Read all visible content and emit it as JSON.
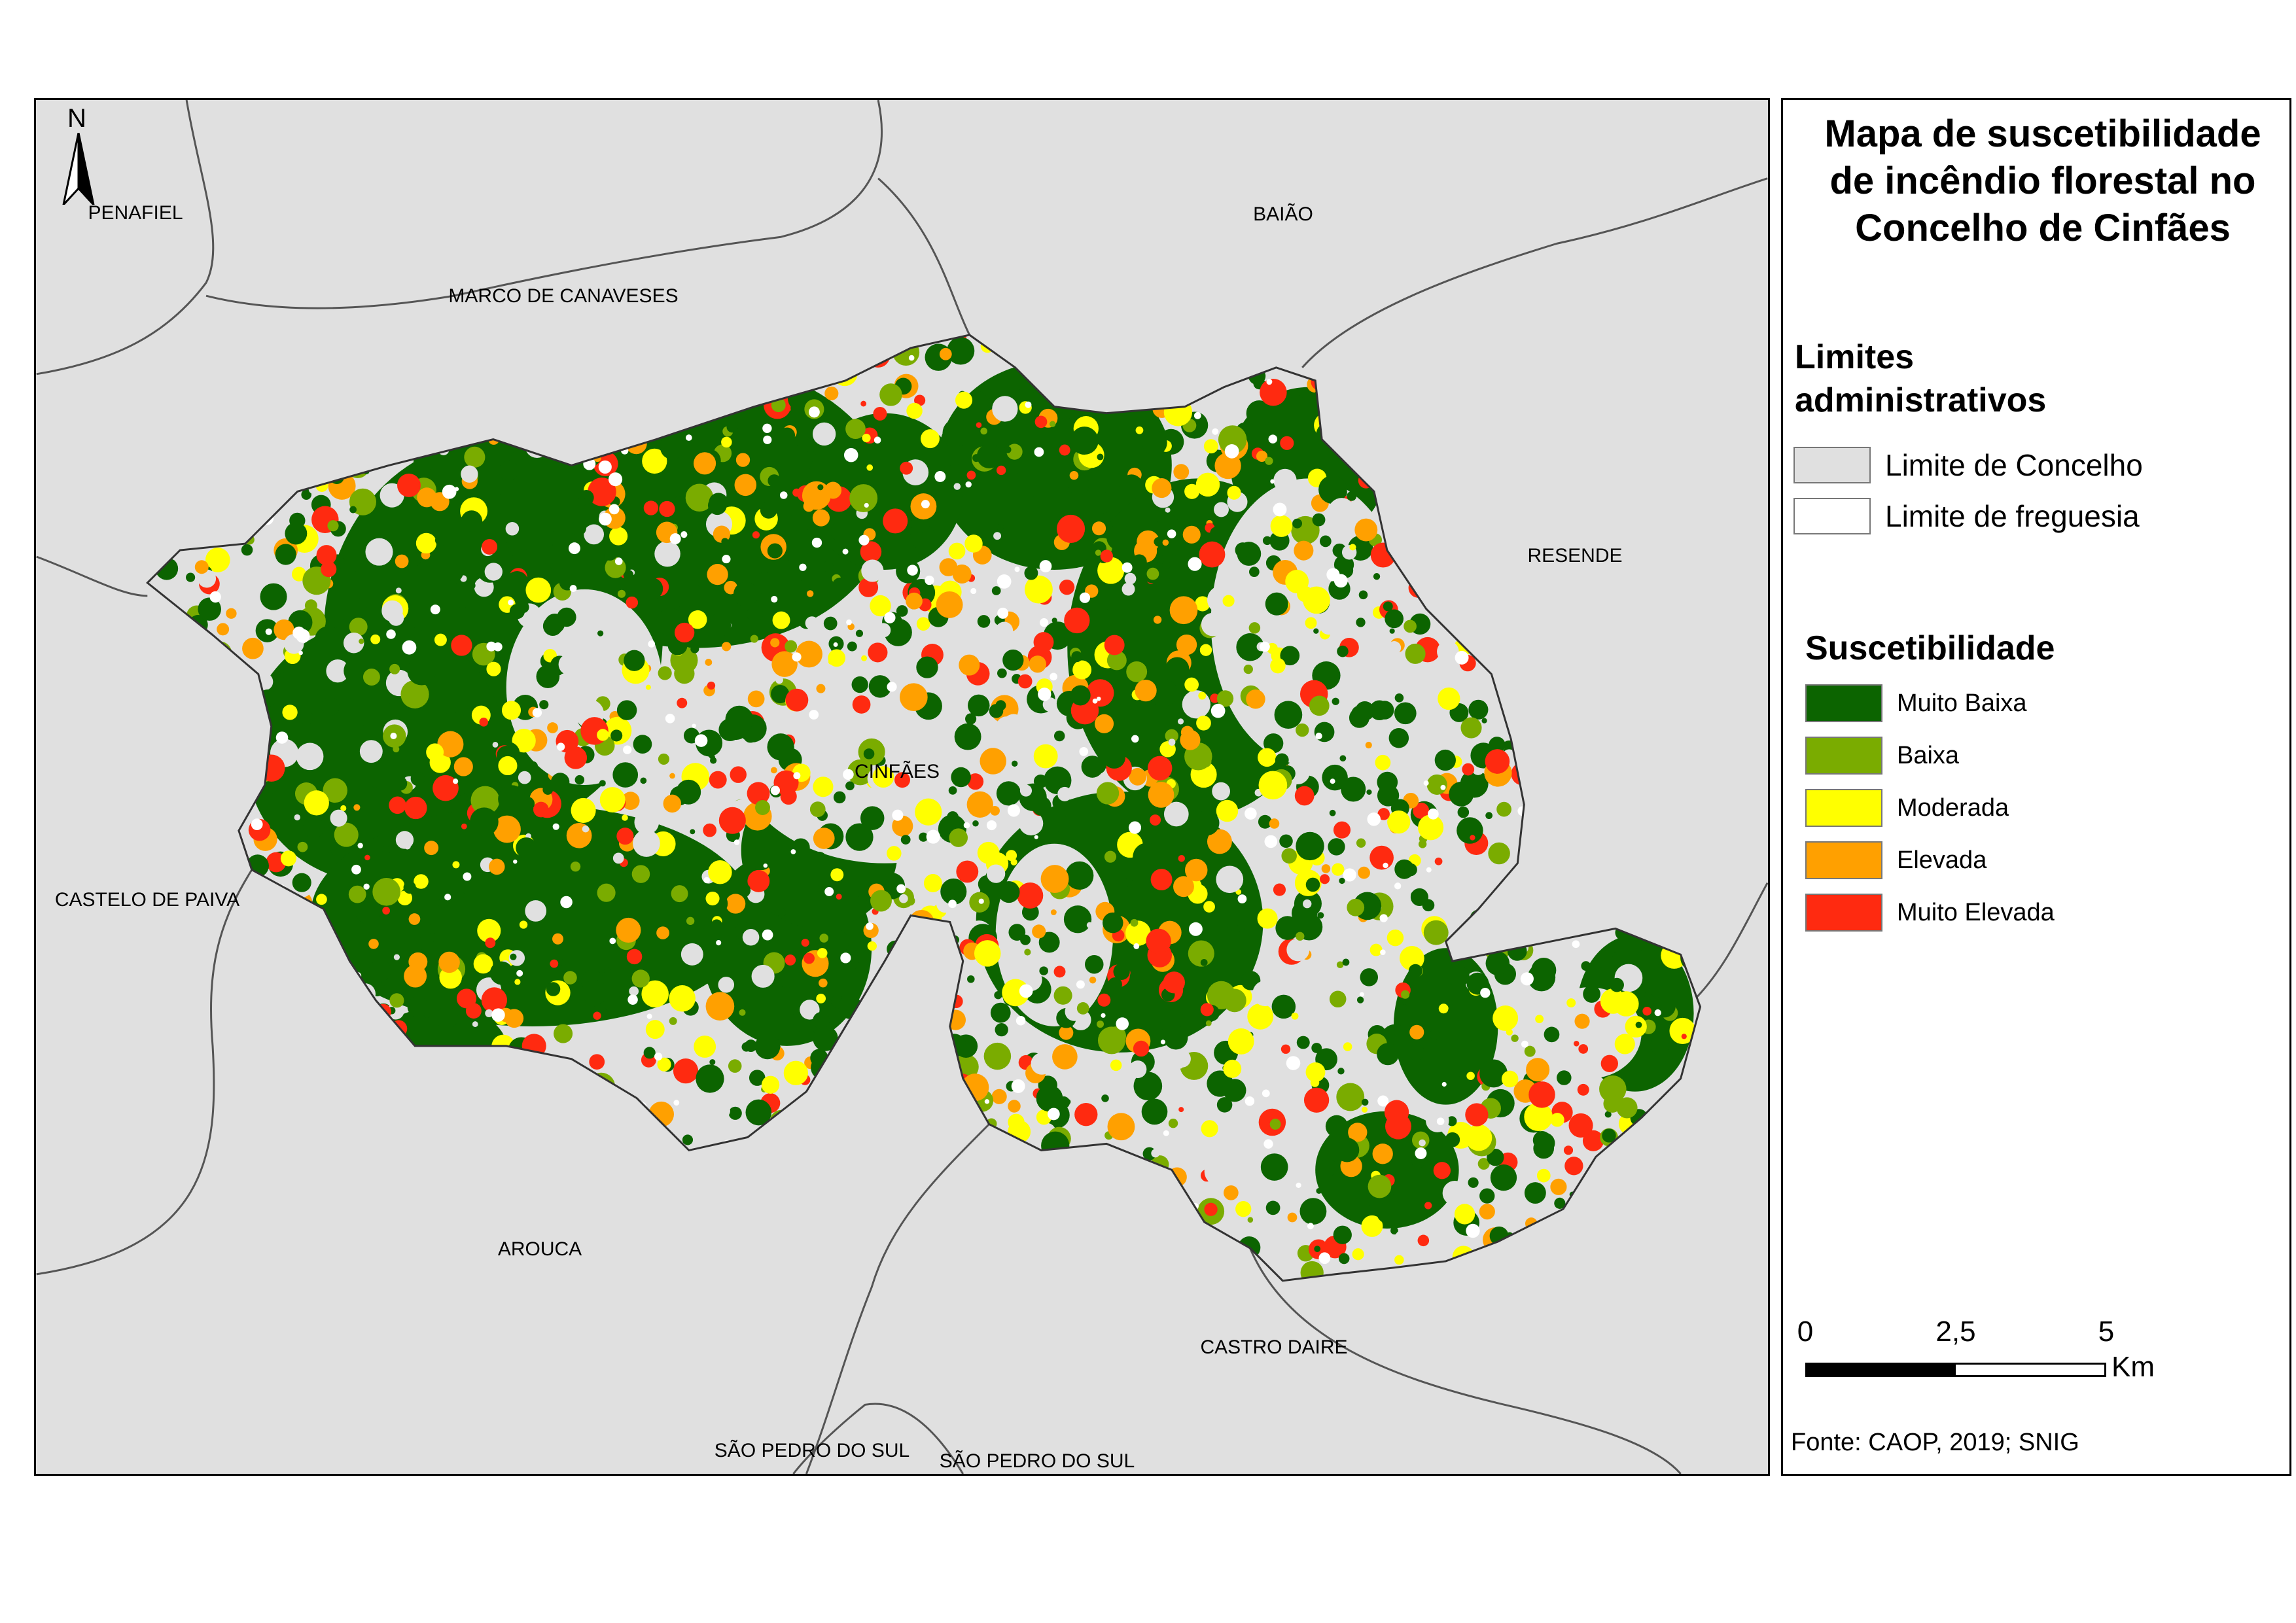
{
  "map": {
    "north_label": "N",
    "places": {
      "penafiel": "PENAFIEL",
      "baiao": "BAIÃO",
      "marco": "MARCO DE CANAVESES",
      "resende": "RESENDE",
      "cinfaes": "CINFÃES",
      "castelo": "CASTELO DE PAIVA",
      "arouca": "AROUCA",
      "castro_daire": "CASTRO DAIRE",
      "sao_pedro_1": "SÃO PEDRO DO SUL",
      "sao_pedro_2": "SÃO PEDRO DO SUL"
    },
    "colors": {
      "background": "#e0e0e0",
      "muito_baixa": "#0c6400",
      "baixa": "#7aac00",
      "moderada": "#ffff00",
      "elevada": "#ffa000",
      "muito_elevada": "#ff2a10"
    }
  },
  "legend": {
    "title_lines": [
      "Mapa de suscetibilidade",
      "de incêndio florestal no",
      "Concelho de Cinfães"
    ],
    "admin_heading_lines": [
      "Limites",
      "administrativos"
    ],
    "admin_items": [
      {
        "label": "Limite de Concelho",
        "color": "#e0e0e0"
      },
      {
        "label": "Limite de freguesia",
        "color": "#ffffff"
      }
    ],
    "susc_heading": "Suscetibilidade",
    "susc_items": [
      {
        "label": "Muito Baixa",
        "color": "#0c6400"
      },
      {
        "label": "Baixa",
        "color": "#7aac00"
      },
      {
        "label": "Moderada",
        "color": "#ffff00"
      },
      {
        "label": "Elevada",
        "color": "#ffa000"
      },
      {
        "label": "Muito Elevada",
        "color": "#ff2a10"
      }
    ],
    "scale": {
      "ticks": [
        "0",
        "2,5",
        "5"
      ],
      "unit": "Km"
    },
    "source": "Fonte: CAOP, 2019; SNIG"
  }
}
